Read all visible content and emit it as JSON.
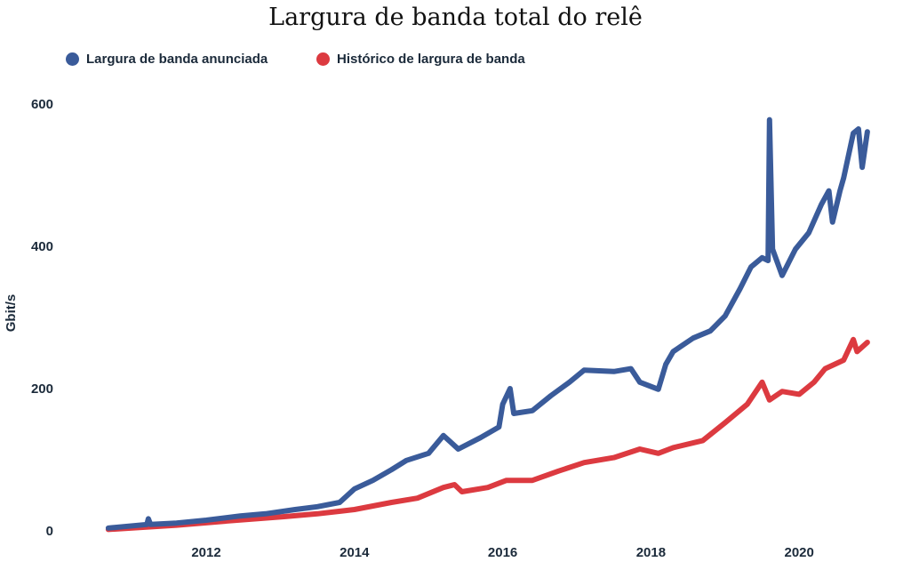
{
  "chart_data": {
    "type": "line",
    "title": "Largura de banda total do relê",
    "ylabel": "Gbit/s",
    "xlabel": "",
    "xlim": [
      2010.4,
      2021.1
    ],
    "ylim": [
      0,
      600
    ],
    "xticks": [
      2012,
      2014,
      2016,
      2018,
      2020
    ],
    "yticks": [
      0,
      200,
      400,
      600
    ],
    "grid": false,
    "legend": "top-left",
    "series": [
      {
        "name": "Largura de banda anunciada",
        "color": "#3a5b9a",
        "x": [
          2010.68,
          2011.2,
          2011.22,
          2011.25,
          2011.6,
          2012,
          2012.46,
          2012.8,
          2013.2,
          2013.5,
          2013.8,
          2014,
          2014.25,
          2014.5,
          2014.7,
          2015,
          2015.2,
          2015.4,
          2015.7,
          2015.95,
          2016,
          2016.1,
          2016.15,
          2016.4,
          2016.65,
          2016.9,
          2017.1,
          2017.5,
          2017.73,
          2017.85,
          2018.1,
          2018.2,
          2018.3,
          2018.57,
          2018.8,
          2019.0,
          2019.2,
          2019.35,
          2019.5,
          2019.58,
          2019.6,
          2019.64,
          2019.77,
          2019.95,
          2020.13,
          2020.3,
          2020.4,
          2020.45,
          2020.55,
          2020.6,
          2020.73,
          2020.8,
          2020.85,
          2020.92
        ],
        "y": [
          4,
          9,
          17,
          9,
          11,
          15,
          21,
          24,
          30,
          34,
          40,
          59,
          71,
          86,
          99,
          109,
          134,
          115,
          131,
          146,
          178,
          200,
          165,
          169,
          190,
          209,
          226,
          224,
          228,
          209,
          199,
          234,
          252,
          271,
          281,
          302,
          340,
          371,
          384,
          380,
          578,
          396,
          359,
          396,
          419,
          459,
          478,
          434,
          478,
          496,
          559,
          565,
          511,
          561
        ]
      },
      {
        "name": "Histórico de largura de banda",
        "color": "#dc3a40",
        "x": [
          2010.68,
          2011.6,
          2012.3,
          2013.05,
          2013.5,
          2014,
          2014.5,
          2014.85,
          2015.2,
          2015.35,
          2015.45,
          2015.8,
          2016.05,
          2016.4,
          2016.75,
          2017.1,
          2017.5,
          2017.85,
          2018.1,
          2018.3,
          2018.7,
          2019.0,
          2019.3,
          2019.5,
          2019.6,
          2019.77,
          2020,
          2020.2,
          2020.35,
          2020.6,
          2020.73,
          2020.78,
          2020.92
        ],
        "y": [
          2,
          8,
          14,
          20,
          24,
          30,
          40,
          46,
          61,
          65,
          55,
          61,
          71,
          71,
          84,
          96,
          103,
          115,
          109,
          117,
          127,
          152,
          178,
          209,
          184,
          196,
          192,
          209,
          228,
          240,
          269,
          252,
          265
        ]
      }
    ]
  }
}
